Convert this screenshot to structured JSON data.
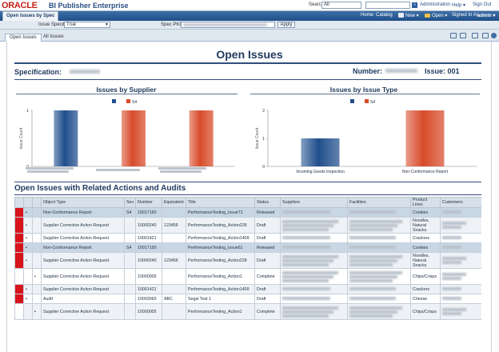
{
  "app": {
    "brand": "ORACLE",
    "product": "BI Publisher Enterprise",
    "search_label": "Search",
    "search_scope": "All",
    "search_button": "»",
    "admin_link": "Administration",
    "help_link": "Help ▾",
    "signout_link": "Sign Out"
  },
  "nav": {
    "report_tab": "Open Issues by Spec",
    "home": "Home",
    "catalog": "Catalog",
    "new": "New ▾",
    "open": "Open ▾",
    "signed_in_label": "Signed In As",
    "user": "admin ▾"
  },
  "params": {
    "issue_specific_label": "Issue Specific",
    "issue_specific_value": "True",
    "spec_pkid_label": "Spec PKID",
    "apply": "Apply"
  },
  "tabs": [
    "Open Issues",
    "All Issues"
  ],
  "report": {
    "title": "Open Issues",
    "specification_label": "Specification:",
    "number_label": "Number:",
    "issue_label": "Issue: 001",
    "section_title": "Open Issues with Related Actions and Audits"
  },
  "colors": {
    "navy_bar": "#1f4e8c",
    "red_bar": "#d84b2a",
    "flag_red": "#d8141b"
  },
  "chart_data": [
    {
      "type": "bar",
      "title": "Issues by Supplier",
      "ylabel": "Issue Count",
      "ylim": [
        0,
        1
      ],
      "yticks": [
        "0",
        "1"
      ],
      "legend": [
        "",
        "S4"
      ],
      "legend_placement": "top",
      "categories": [
        "",
        "",
        ""
      ],
      "series": [
        {
          "name": "",
          "color": "#1f4e8c",
          "values": [
            1,
            0,
            0
          ]
        },
        {
          "name": "S4",
          "color": "#d84b2a",
          "values": [
            0,
            1,
            1
          ]
        }
      ]
    },
    {
      "type": "bar",
      "title": "Issues by Issue Type",
      "ylabel": "Issue Count",
      "ylim": [
        0,
        2
      ],
      "yticks": [
        "0",
        "1",
        "2"
      ],
      "legend": [
        "",
        "S4"
      ],
      "legend_placement": "top",
      "categories": [
        "Incoming Goods Inspection",
        "Non-Conformance Report"
      ],
      "series": [
        {
          "name": "",
          "color": "#1f4e8c",
          "values": [
            1,
            0
          ]
        },
        {
          "name": "S4",
          "color": "#d84b2a",
          "values": [
            0,
            2
          ]
        }
      ]
    }
  ],
  "table": {
    "columns": [
      "",
      "",
      "",
      "Object Type",
      "Sev",
      "Number",
      "Equivalent",
      "Title",
      "Status",
      "Suppliers",
      "Facilities",
      "Product Lines",
      "Customers"
    ],
    "rows": [
      {
        "flag": true,
        "lvl": 1,
        "type": "Non-Conformance Report",
        "sev": "S4",
        "number": "10017160",
        "equiv": "",
        "title": "PerformanceTesting_Issue71",
        "status": "Released",
        "product": "Cookies",
        "style": "grp"
      },
      {
        "flag": true,
        "lvl": 1,
        "type": "Supplier Corrective Action Request",
        "sev": "",
        "number": "10000240",
        "equiv": "123456",
        "title": "PerformanceTesting_Action228",
        "status": "Draft",
        "product": "Noodles, Natural Snacks",
        "style": "even"
      },
      {
        "flag": true,
        "lvl": 1,
        "type": "Supplier Corrective Action Request",
        "sev": "",
        "number": "10001421",
        "equiv": "",
        "title": "PerformanceTesting_Action1409",
        "status": "Draft",
        "product": "Crackers",
        "style": "odd"
      },
      {
        "flag": true,
        "lvl": 1,
        "type": "Non-Conformance Report",
        "sev": "S4",
        "number": "10017150",
        "equiv": "",
        "title": "PerformanceTesting_Issue61",
        "status": "Released",
        "product": "Cookies",
        "style": "grp"
      },
      {
        "flag": true,
        "lvl": 1,
        "type": "Supplier Corrective Action Request",
        "sev": "",
        "number": "10000240",
        "equiv": "123456",
        "title": "PerformanceTesting_Action228",
        "status": "Draft",
        "product": "Noodles, Natural Snacks",
        "style": "even"
      },
      {
        "flag": false,
        "lvl": 2,
        "type": "Supplier Corrective Action Request",
        "sev": "",
        "number": "10000005",
        "equiv": "",
        "title": "PerformanceTesting_Action1",
        "status": "Complete",
        "product": "Chips/Crisps",
        "style": "odd"
      },
      {
        "flag": true,
        "lvl": 1,
        "type": "Supplier Corrective Action Request",
        "sev": "",
        "number": "10001421",
        "equiv": "",
        "title": "PerformanceTesting_Action1409",
        "status": "Draft",
        "product": "Crackers",
        "style": "even"
      },
      {
        "flag": true,
        "lvl": 1,
        "type": "Audit",
        "sev": "",
        "number": "10003069",
        "equiv": "ABC",
        "title": "Segal Test 1",
        "status": "Draft",
        "product": "Cheese",
        "style": "odd"
      },
      {
        "flag": false,
        "lvl": 2,
        "type": "Supplier Corrective Action Request",
        "sev": "",
        "number": "10000005",
        "equiv": "",
        "title": "PerformanceTesting_Action1",
        "status": "Complete",
        "product": "Chips/Crisps",
        "style": "even"
      }
    ]
  }
}
